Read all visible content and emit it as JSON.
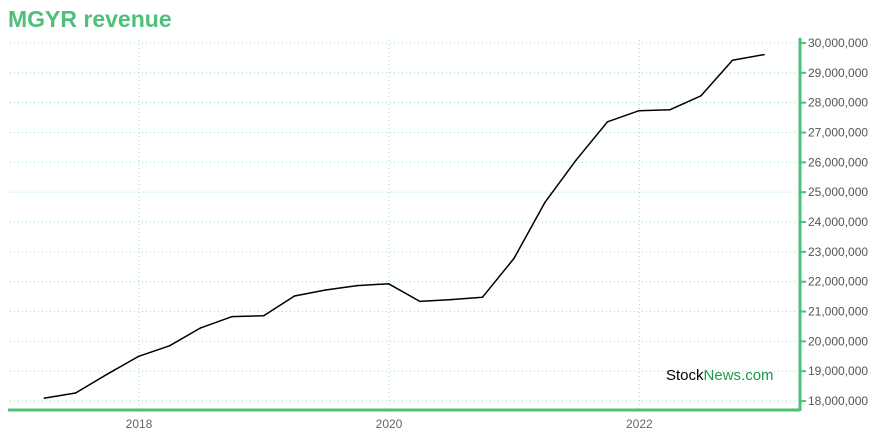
{
  "chart_data": {
    "type": "line",
    "title": "MGYR revenue",
    "xlabel": "",
    "ylabel": "",
    "ylim": [
      17700000,
      30100000
    ],
    "y_ticks": [
      "18,000,000",
      "19,000,000",
      "20,000,000",
      "21,000,000",
      "22,000,000",
      "23,000,000",
      "24,000,000",
      "25,000,000",
      "26,000,000",
      "27,000,000",
      "28,000,000",
      "29,000,000",
      "30,000,000"
    ],
    "x_ticks": [
      "2018",
      "2020",
      "2022"
    ],
    "grid": true,
    "series": [
      {
        "color": "#000000",
        "points": [
          {
            "x": "2017-03-31",
            "y": 18100000
          },
          {
            "x": "2017-06-30",
            "y": 18270000
          },
          {
            "x": "2017-09-30",
            "y": 18900000
          },
          {
            "x": "2017-12-31",
            "y": 19500000
          },
          {
            "x": "2018-03-31",
            "y": 19850000
          },
          {
            "x": "2018-06-30",
            "y": 20450000
          },
          {
            "x": "2018-09-30",
            "y": 20830000
          },
          {
            "x": "2018-12-31",
            "y": 20860000
          },
          {
            "x": "2019-03-31",
            "y": 21520000
          },
          {
            "x": "2019-06-30",
            "y": 21720000
          },
          {
            "x": "2019-09-30",
            "y": 21870000
          },
          {
            "x": "2019-12-31",
            "y": 21930000
          },
          {
            "x": "2020-03-31",
            "y": 21340000
          },
          {
            "x": "2020-06-30",
            "y": 21400000
          },
          {
            "x": "2020-09-30",
            "y": 21480000
          },
          {
            "x": "2020-12-31",
            "y": 22780000
          },
          {
            "x": "2021-03-31",
            "y": 24650000
          },
          {
            "x": "2021-06-30",
            "y": 26070000
          },
          {
            "x": "2021-09-30",
            "y": 27360000
          },
          {
            "x": "2021-12-31",
            "y": 27730000
          },
          {
            "x": "2022-03-31",
            "y": 27760000
          },
          {
            "x": "2022-06-30",
            "y": 28230000
          },
          {
            "x": "2022-09-30",
            "y": 29420000
          },
          {
            "x": "2022-12-31",
            "y": 29610000
          }
        ]
      }
    ]
  },
  "watermark": {
    "part1": "Stock",
    "part2": "News.com"
  },
  "colors": {
    "accent": "#4fbf7a",
    "grid": "#9fd9b8",
    "line": "#000000"
  }
}
